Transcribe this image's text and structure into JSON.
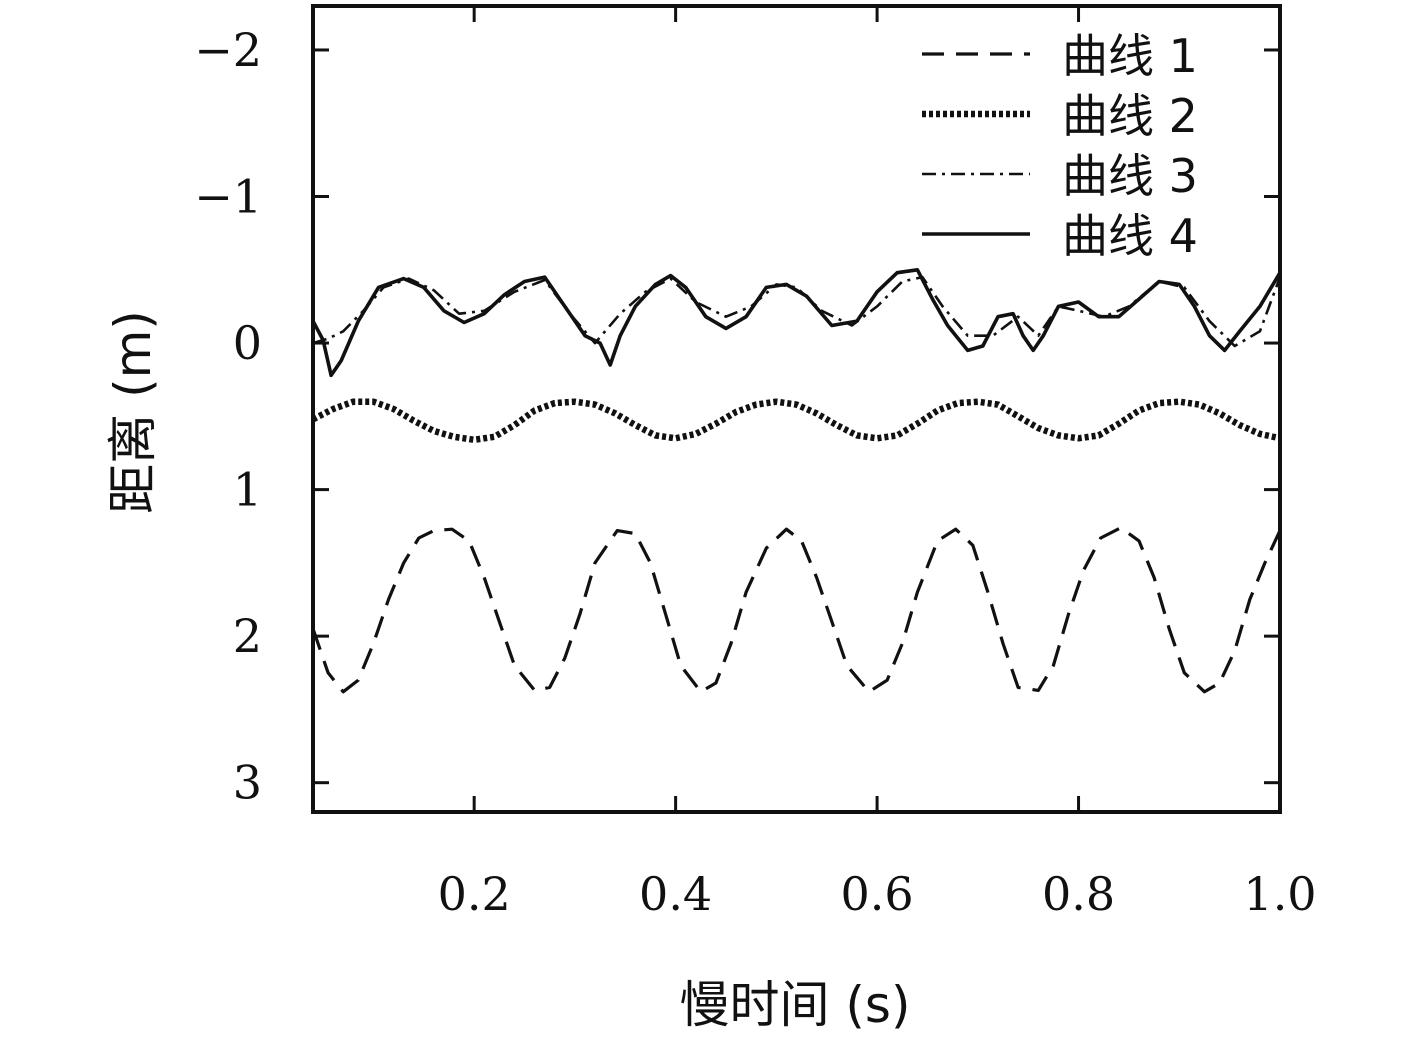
{
  "chart_data": {
    "type": "line",
    "title": "",
    "xlabel": "慢时间 (s)",
    "ylabel": "距离 (m)",
    "xlim": [
      0.04,
      1.0
    ],
    "ylim": [
      3.2,
      -2.3
    ],
    "y_inverted": true,
    "xticks": [
      "0.2",
      "0.4",
      "0.6",
      "0.8",
      "1.0"
    ],
    "xtick_values": [
      0.2,
      0.4,
      0.6,
      0.8,
      1.0
    ],
    "yticks": [
      "−2",
      "−1",
      "0",
      "1",
      "2",
      "3"
    ],
    "ytick_values": [
      -2,
      -1,
      0,
      1,
      2,
      3
    ],
    "grid": false,
    "legend_position": "top-right",
    "series": [
      {
        "name": "曲线 1",
        "style": "dashed",
        "x": [
          0.04,
          0.055,
          0.07,
          0.085,
          0.1,
          0.115,
          0.13,
          0.145,
          0.16,
          0.178,
          0.195,
          0.21,
          0.225,
          0.24,
          0.26,
          0.275,
          0.29,
          0.305,
          0.32,
          0.342,
          0.36,
          0.375,
          0.39,
          0.405,
          0.425,
          0.44,
          0.455,
          0.47,
          0.49,
          0.51,
          0.525,
          0.54,
          0.555,
          0.57,
          0.592,
          0.61,
          0.625,
          0.64,
          0.66,
          0.678,
          0.695,
          0.71,
          0.725,
          0.74,
          0.76,
          0.775,
          0.79,
          0.805,
          0.822,
          0.842,
          0.86,
          0.875,
          0.89,
          0.905,
          0.925,
          0.94,
          0.955,
          0.97,
          0.985,
          1.0
        ],
        "y": [
          1.95,
          2.25,
          2.38,
          2.3,
          2.05,
          1.75,
          1.5,
          1.33,
          1.28,
          1.27,
          1.35,
          1.6,
          1.9,
          2.2,
          2.37,
          2.35,
          2.15,
          1.85,
          1.5,
          1.28,
          1.3,
          1.5,
          1.85,
          2.2,
          2.38,
          2.32,
          2.05,
          1.7,
          1.4,
          1.27,
          1.35,
          1.6,
          1.9,
          2.2,
          2.38,
          2.3,
          2.05,
          1.7,
          1.35,
          1.27,
          1.38,
          1.7,
          2.05,
          2.35,
          2.37,
          2.2,
          1.85,
          1.55,
          1.33,
          1.26,
          1.35,
          1.6,
          1.95,
          2.25,
          2.38,
          2.32,
          2.1,
          1.75,
          1.5,
          1.28
        ]
      },
      {
        "name": "曲线 2",
        "style": "dotted",
        "x": [
          0.04,
          0.06,
          0.08,
          0.1,
          0.12,
          0.14,
          0.16,
          0.18,
          0.2,
          0.22,
          0.24,
          0.26,
          0.28,
          0.3,
          0.32,
          0.34,
          0.36,
          0.38,
          0.4,
          0.42,
          0.44,
          0.46,
          0.48,
          0.5,
          0.52,
          0.54,
          0.56,
          0.58,
          0.6,
          0.62,
          0.64,
          0.66,
          0.68,
          0.7,
          0.72,
          0.74,
          0.76,
          0.78,
          0.8,
          0.82,
          0.84,
          0.86,
          0.88,
          0.9,
          0.92,
          0.94,
          0.96,
          0.98,
          1.0
        ],
        "y": [
          0.52,
          0.45,
          0.4,
          0.4,
          0.45,
          0.53,
          0.6,
          0.64,
          0.66,
          0.64,
          0.56,
          0.46,
          0.41,
          0.4,
          0.42,
          0.48,
          0.56,
          0.63,
          0.65,
          0.62,
          0.55,
          0.47,
          0.42,
          0.4,
          0.42,
          0.48,
          0.56,
          0.63,
          0.65,
          0.63,
          0.55,
          0.46,
          0.41,
          0.4,
          0.42,
          0.5,
          0.58,
          0.63,
          0.65,
          0.63,
          0.55,
          0.46,
          0.41,
          0.4,
          0.42,
          0.48,
          0.56,
          0.62,
          0.65
        ]
      },
      {
        "name": "曲线 3",
        "style": "dashdot",
        "x": [
          0.04,
          0.055,
          0.07,
          0.09,
          0.11,
          0.135,
          0.16,
          0.185,
          0.21,
          0.24,
          0.27,
          0.295,
          0.32,
          0.345,
          0.37,
          0.395,
          0.42,
          0.45,
          0.475,
          0.5,
          0.52,
          0.545,
          0.575,
          0.6,
          0.625,
          0.645,
          0.665,
          0.69,
          0.715,
          0.74,
          0.76,
          0.78,
          0.8,
          0.825,
          0.85,
          0.88,
          0.905,
          0.93,
          0.955,
          0.98,
          1.0
        ],
        "y": [
          0.0,
          -0.03,
          -0.08,
          -0.22,
          -0.38,
          -0.44,
          -0.36,
          -0.2,
          -0.22,
          -0.35,
          -0.43,
          -0.2,
          0.0,
          -0.2,
          -0.35,
          -0.44,
          -0.28,
          -0.18,
          -0.25,
          -0.4,
          -0.38,
          -0.22,
          -0.12,
          -0.25,
          -0.42,
          -0.45,
          -0.25,
          -0.05,
          -0.05,
          -0.18,
          -0.05,
          -0.25,
          -0.22,
          -0.18,
          -0.25,
          -0.42,
          -0.38,
          -0.15,
          0.02,
          -0.08,
          -0.45
        ]
      },
      {
        "name": "曲线 4",
        "style": "solid",
        "x": [
          0.04,
          0.05,
          0.058,
          0.068,
          0.085,
          0.105,
          0.13,
          0.15,
          0.17,
          0.19,
          0.21,
          0.23,
          0.25,
          0.27,
          0.29,
          0.31,
          0.325,
          0.335,
          0.345,
          0.36,
          0.38,
          0.395,
          0.41,
          0.43,
          0.45,
          0.47,
          0.49,
          0.51,
          0.53,
          0.555,
          0.58,
          0.6,
          0.62,
          0.64,
          0.655,
          0.67,
          0.69,
          0.705,
          0.72,
          0.735,
          0.745,
          0.755,
          0.765,
          0.78,
          0.8,
          0.82,
          0.84,
          0.86,
          0.88,
          0.9,
          0.915,
          0.93,
          0.945,
          0.96,
          0.98,
          1.0
        ],
        "y": [
          -0.15,
          -0.02,
          0.22,
          0.12,
          -0.15,
          -0.38,
          -0.44,
          -0.38,
          -0.22,
          -0.14,
          -0.2,
          -0.33,
          -0.42,
          -0.45,
          -0.25,
          -0.05,
          0.0,
          0.15,
          -0.05,
          -0.25,
          -0.4,
          -0.46,
          -0.38,
          -0.18,
          -0.1,
          -0.18,
          -0.38,
          -0.4,
          -0.32,
          -0.12,
          -0.15,
          -0.35,
          -0.48,
          -0.5,
          -0.3,
          -0.12,
          0.05,
          0.02,
          -0.18,
          -0.2,
          -0.05,
          0.05,
          -0.05,
          -0.25,
          -0.28,
          -0.18,
          -0.18,
          -0.3,
          -0.42,
          -0.4,
          -0.25,
          -0.05,
          0.05,
          -0.08,
          -0.25,
          -0.48
        ]
      }
    ]
  }
}
